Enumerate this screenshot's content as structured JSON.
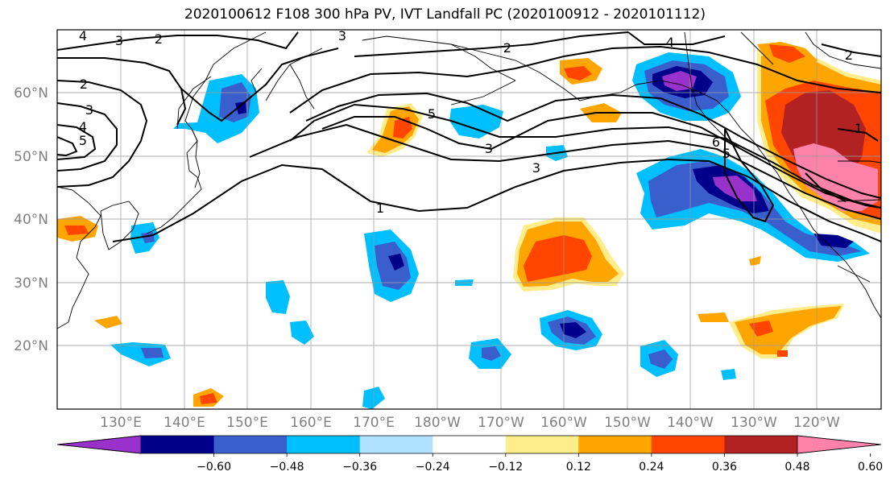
{
  "title": "2020100612 F108 300 hPa PV, IVT Landfall PC (2020100912 - 2020101112)",
  "map": {
    "lon_labels": [
      "130°E",
      "140°E",
      "150°E",
      "160°E",
      "170°E",
      "180°W",
      "170°W",
      "160°W",
      "150°W",
      "140°W",
      "130°W",
      "120°W"
    ],
    "lat_labels": [
      "60°N",
      "50°N",
      "40°N",
      "30°N",
      "20°N"
    ],
    "lon_range_deg": [
      120,
      250
    ],
    "lat_range_deg": [
      10,
      70
    ],
    "grid": true,
    "pv_contour_labels": [
      "4",
      "3",
      "2",
      "3",
      "2",
      "2",
      "3",
      "4",
      "5",
      "5",
      "3",
      "1",
      "3",
      "4",
      "6",
      "5",
      "1",
      "2"
    ]
  },
  "colorbar": {
    "tick_labels": [
      "−0.60",
      "−0.48",
      "−0.36",
      "−0.24",
      "−0.12",
      "0.12",
      "0.24",
      "0.36",
      "0.48",
      "0.60"
    ],
    "levels": [
      -0.6,
      -0.48,
      -0.36,
      -0.24,
      -0.12,
      0.12,
      0.24,
      0.36,
      0.48,
      0.6
    ],
    "colors": [
      "#9932CC",
      "#00008B",
      "#3A5FCD",
      "#00BFFF",
      "#B0E2FF",
      "#FFFFFF",
      "#FFEC8B",
      "#FFA500",
      "#FF4500",
      "#B22222",
      "#FF82AB"
    ],
    "extend": "both"
  }
}
